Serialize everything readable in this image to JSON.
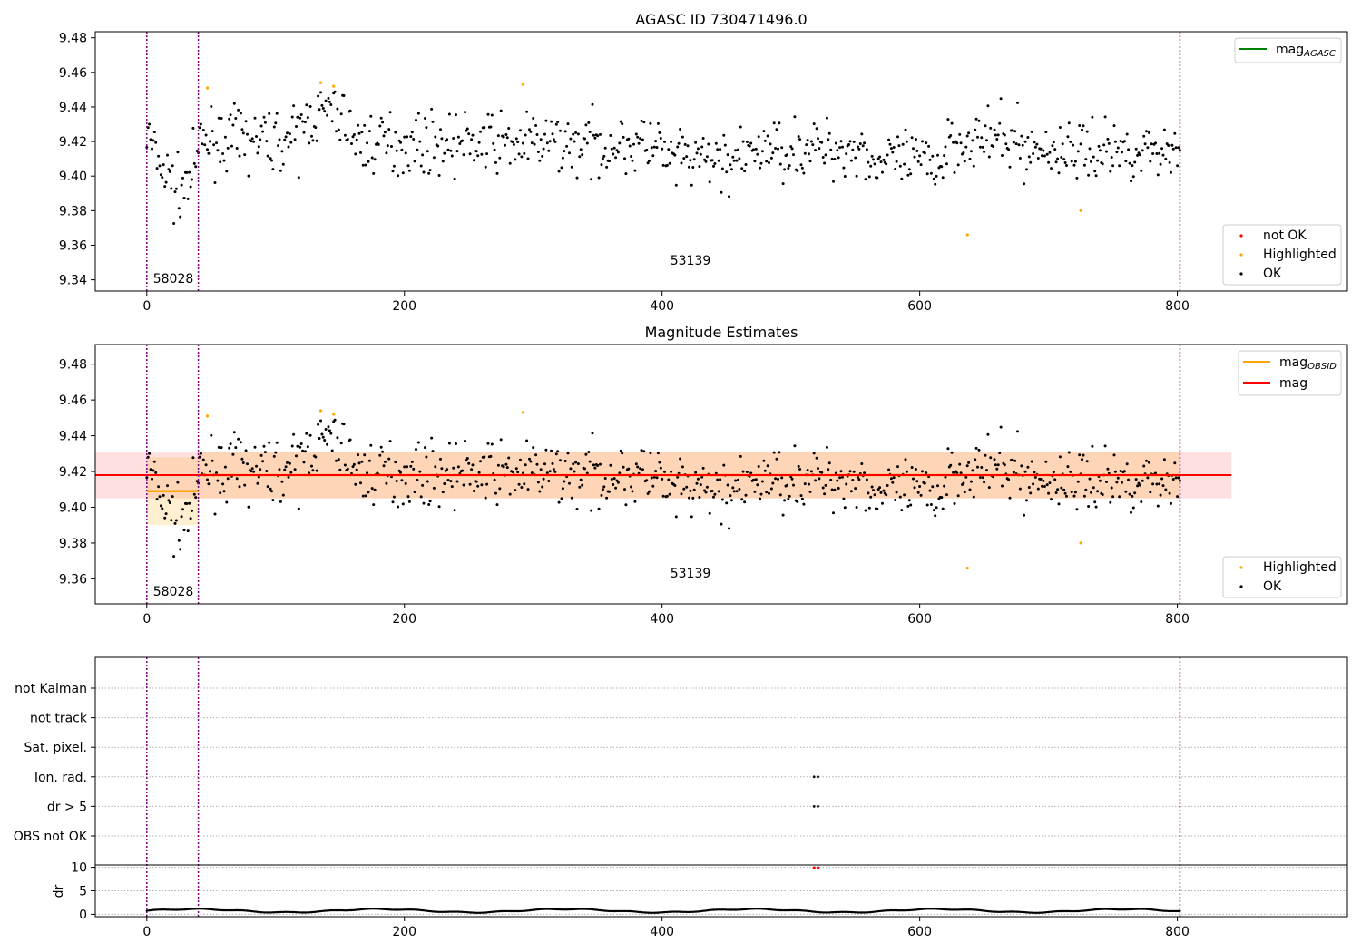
{
  "figure": {
    "panel1_title": "AGASC ID 730471496.0",
    "panel2_title": "Magnitude Estimates"
  },
  "axes": {
    "x_ticks": [
      "0",
      "200",
      "400",
      "600",
      "800"
    ],
    "x_range": [
      -40,
      932
    ],
    "panel1_y_ticks": [
      "9.34",
      "9.36",
      "9.38",
      "9.40",
      "9.42",
      "9.44",
      "9.46",
      "9.48"
    ],
    "panel1_y_range": [
      9.3335,
      9.4835
    ],
    "panel2_y_ticks": [
      "9.36",
      "9.38",
      "9.40",
      "9.42",
      "9.44",
      "9.46",
      "9.48"
    ],
    "panel2_y_range": [
      9.346,
      9.491
    ],
    "flag_labels": [
      "not Kalman",
      "not track",
      "Sat. pixel.",
      "Ion. rad.",
      "dr > 5",
      "OBS not OK"
    ],
    "dr_label": "dr",
    "dr_ticks": [
      "0",
      "5",
      "10"
    ],
    "dr_range": [
      -0.5,
      10.5
    ]
  },
  "annotations": {
    "obsid_a": "58028",
    "obsid_b": "53139"
  },
  "legend": {
    "mag_agasc_main": "mag",
    "mag_agasc_sub": "AGASC",
    "mag_obsid_main": "mag",
    "mag_obsid_sub": "OBSID",
    "mag": "mag",
    "not_ok": "not OK",
    "highlighted": "Highlighted",
    "ok": "OK"
  },
  "colors": {
    "ok": "#000000",
    "highlighted": "#ffa500",
    "not_ok": "#ff0000",
    "mag_line": "#ff0000",
    "mag_obsid_line": "#ffa500",
    "mag_agasc_line": "#008000",
    "obsid_boundary": "#800080"
  },
  "chart_data": [
    {
      "type": "scatter",
      "title": "AGASC ID 730471496.0",
      "x_range": [
        -40,
        932
      ],
      "y_range": [
        9.3335,
        9.4835
      ],
      "obsid_boundaries": [
        0,
        40,
        802
      ],
      "obsid_labels": [
        {
          "text": "58028",
          "x": 20
        },
        {
          "text": "53139",
          "x": 421
        }
      ],
      "legend": [
        "mag_AGASC",
        "not OK",
        "Highlighted",
        "OK"
      ],
      "highlighted_points": [
        [
          47,
          9.451
        ],
        [
          135,
          9.454
        ],
        [
          145,
          9.452
        ],
        [
          292,
          9.453
        ],
        [
          637,
          9.366
        ],
        [
          725,
          9.38
        ]
      ],
      "ok_points": "about 800 samples, x 0-802, y mostly 9.39-9.45, mean 9.418 (see series summary)"
    },
    {
      "type": "scatter",
      "title": "Magnitude Estimates",
      "x_range": [
        -40,
        932
      ],
      "y_range": [
        9.346,
        9.491
      ],
      "mag": 9.418,
      "mag_band": [
        9.405,
        9.431
      ],
      "obsid_mags": [
        {
          "obsid": "58028",
          "x_range": [
            0,
            40
          ],
          "mag": 9.409,
          "band": [
            9.39,
            9.428
          ]
        },
        {
          "obsid": "53139",
          "x_range": [
            40,
            802
          ],
          "mag": 9.418,
          "band": [
            9.405,
            9.431
          ]
        }
      ],
      "highlighted_points": [
        [
          47,
          9.451
        ],
        [
          135,
          9.454
        ],
        [
          145,
          9.452
        ],
        [
          292,
          9.453
        ],
        [
          637,
          9.366
        ],
        [
          725,
          9.38
        ]
      ],
      "legend": [
        "mag_OBSID",
        "mag",
        "Highlighted",
        "OK"
      ]
    },
    {
      "type": "scatter",
      "title": "",
      "categories": [
        "not Kalman",
        "not track",
        "Sat. pixel.",
        "Ion. rad.",
        "dr > 5",
        "OBS not OK"
      ],
      "flag_points": [
        {
          "flag": "Ion. rad.",
          "x": [
            518,
            521
          ]
        },
        {
          "flag": "dr > 5",
          "x": [
            518,
            521
          ]
        }
      ]
    },
    {
      "type": "scatter",
      "title": "",
      "ylabel": "dr",
      "y_range": [
        -0.5,
        10.5
      ],
      "baseline": "about 0.5-1.2 for all samples x 0-802",
      "outliers": [
        [
          518,
          9.9
        ],
        [
          521,
          9.9
        ]
      ]
    }
  ]
}
